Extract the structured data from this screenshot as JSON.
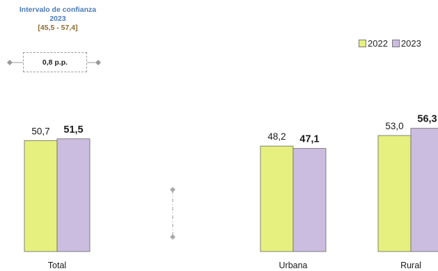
{
  "confidence_interval": {
    "title": "Intervalo de confianza 2023",
    "range": "[45,5 - 57,4]",
    "difference": "0,8 p.p."
  },
  "colors": {
    "2022": "#e6f07e",
    "2023": "#cbbde0"
  },
  "chart_data": {
    "type": "bar",
    "categories": [
      "Total",
      "Urbana",
      "Rural"
    ],
    "series": [
      {
        "name": "2022",
        "values": [
          50.7,
          48.2,
          53.0
        ],
        "labels": [
          "50,7",
          "48,2",
          "53,0"
        ]
      },
      {
        "name": "2023",
        "values": [
          51.5,
          47.1,
          56.3
        ],
        "labels": [
          "51,5",
          "47,1",
          "56,3"
        ]
      }
    ],
    "legend_position": "top-right",
    "grid": false
  }
}
